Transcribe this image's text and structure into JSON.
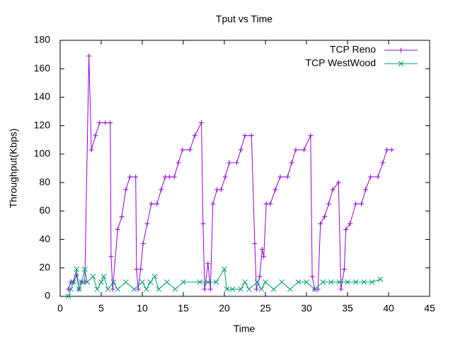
{
  "chart_data": {
    "type": "line",
    "title": "Tput vs Time",
    "x_label": "Time",
    "y_label": "Throughput(Kbps)",
    "xlim": [
      0,
      45
    ],
    "xticks": [
      0,
      5,
      10,
      15,
      20,
      25,
      30,
      35,
      40,
      45
    ],
    "ylim": [
      0,
      180
    ],
    "yticks": [
      0,
      20,
      40,
      60,
      80,
      100,
      120,
      140,
      160,
      180
    ],
    "legend_position": "top-right",
    "series": [
      {
        "name": "TCP Reno",
        "color": "#9400d3",
        "marker": "plus",
        "x": [
          1,
          1.3,
          1.6,
          2,
          2.3,
          2.6,
          3,
          3.5,
          3.8,
          4.3,
          4.8,
          5.5,
          6.1,
          6.2,
          6.4,
          7.0,
          7.5,
          8.0,
          8.5,
          9.2,
          9.3,
          9.5,
          9.8,
          10.1,
          10.6,
          11.1,
          11.8,
          12.3,
          12.8,
          13.3,
          13.9,
          14.4,
          14.9,
          15.8,
          16.4,
          17.2,
          17.4,
          17.6,
          18.0,
          18.3,
          18.6,
          19.1,
          19.6,
          20.1,
          20.6,
          21.5,
          22.0,
          22.5,
          23.3,
          23.7,
          23.9,
          24.3,
          24.6,
          24.8,
          25.1,
          25.6,
          26.2,
          26.8,
          27.7,
          28.2,
          28.7,
          29.7,
          30.5,
          30.7,
          31.0,
          31.4,
          31.7,
          32.2,
          32.7,
          33.2,
          33.9,
          34.2,
          34.6,
          34.8,
          35.3,
          36.0,
          36.7,
          37.2,
          37.8,
          38.7,
          39.3,
          39.8,
          40.4
        ],
        "values": [
          5,
          10,
          10,
          15,
          5,
          10,
          10,
          169,
          103,
          113,
          122,
          122,
          122,
          28,
          5,
          47,
          56,
          75,
          84,
          84,
          19,
          5,
          19,
          37,
          51,
          65,
          65,
          75,
          84,
          84,
          84,
          94,
          103,
          103,
          113,
          122,
          51,
          5,
          23,
          5,
          65,
          75,
          75,
          84,
          94,
          94,
          103,
          113,
          113,
          37,
          5,
          14,
          33,
          28,
          65,
          65,
          75,
          84,
          84,
          94,
          103,
          103,
          113,
          14,
          5,
          5,
          51,
          56,
          65,
          75,
          80,
          5,
          19,
          47,
          51,
          65,
          65,
          75,
          84,
          84,
          94,
          103,
          103
        ]
      },
      {
        "name": "TCP WestWood",
        "color": "#009e73",
        "marker": "cross",
        "x": [
          1,
          1.3,
          1.6,
          2,
          2.3,
          2.6,
          3,
          3.3,
          4,
          4.5,
          5,
          5.3,
          5.8,
          6.5,
          7,
          8,
          9,
          10,
          10.5,
          11,
          11.5,
          12,
          13,
          14,
          15,
          17,
          18,
          19,
          20,
          20.3,
          21,
          22,
          22.5,
          23,
          24,
          24.5,
          25,
          26,
          27,
          28,
          29,
          30,
          31,
          32,
          33,
          34,
          35,
          36,
          37,
          38,
          39
        ],
        "values": [
          0,
          5,
          10,
          19,
          5,
          10,
          19,
          10,
          14,
          5,
          10,
          14,
          5,
          10,
          5,
          10,
          5,
          10,
          5,
          10,
          14,
          5,
          10,
          5,
          10,
          10,
          10,
          10,
          19,
          5,
          5,
          5,
          10,
          5,
          10,
          5,
          10,
          5,
          10,
          5,
          10,
          10,
          5,
          10,
          10,
          10,
          10,
          10,
          10,
          10,
          12
        ]
      }
    ]
  }
}
